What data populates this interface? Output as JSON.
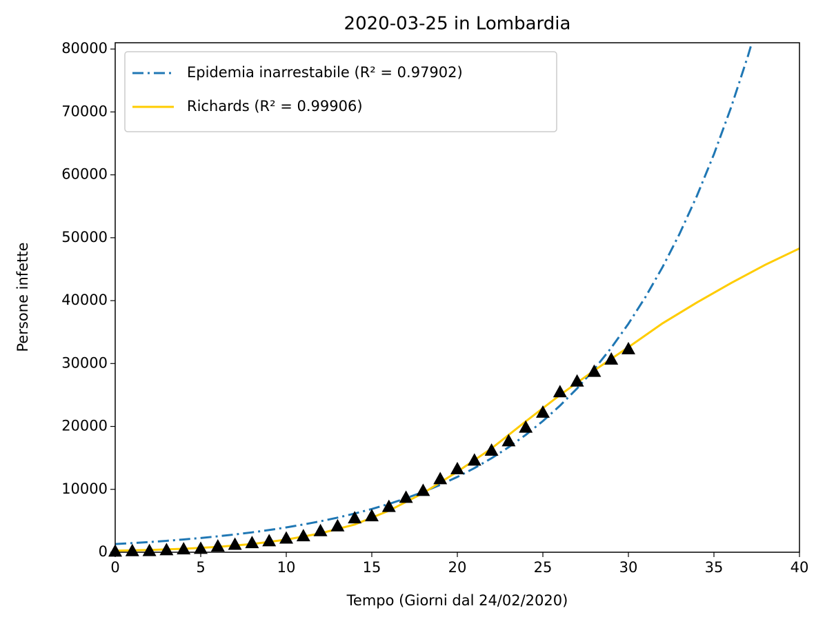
{
  "chart_data": {
    "type": "line",
    "title": "2020-03-25 in Lombardia",
    "x_label": "Tempo (Giorni dal 24/02/2020)",
    "y_label": "Persone infette",
    "xlim": [
      0,
      40
    ],
    "xticks": [
      0,
      5,
      10,
      15,
      20,
      25,
      30,
      35,
      40
    ],
    "ylim": [
      0,
      81000
    ],
    "yticks": [
      0,
      10000,
      20000,
      30000,
      40000,
      50000,
      60000,
      70000,
      80000
    ],
    "grid": false,
    "legend": "upper left",
    "series": [
      {
        "name": "Epidemia inarrestabile (R² = 0.97902)",
        "color": "#1f77b4",
        "linestyle": "dashdot",
        "x": [
          0,
          1,
          2,
          3,
          4,
          5,
          6,
          7,
          8,
          9,
          10,
          11,
          12,
          13,
          14,
          15,
          16,
          17,
          18,
          19,
          20,
          21,
          22,
          23,
          24,
          25,
          26,
          27,
          28,
          29,
          30,
          31,
          32,
          33,
          34,
          35,
          36,
          37,
          38
        ],
        "values": [
          1300,
          1453,
          1623,
          1814,
          2027,
          2264,
          2530,
          2827,
          3159,
          3530,
          3945,
          4408,
          4925,
          5504,
          6150,
          6872,
          7678,
          8580,
          9587,
          10713,
          11970,
          13375,
          14946,
          16700,
          18661,
          20852,
          23300,
          26035,
          29091,
          32507,
          36323,
          40587,
          45353,
          50678,
          56627,
          63275,
          70703,
          79004,
          88279
        ]
      },
      {
        "name": "Richards (R² = 0.99906)",
        "color": "#ffcc00",
        "linestyle": "solid",
        "x": [
          0,
          2,
          4,
          6,
          8,
          10,
          12,
          14,
          16,
          18,
          20,
          22,
          24,
          26,
          28,
          30,
          32,
          34,
          36,
          38,
          40
        ],
        "values": [
          250,
          350,
          550,
          850,
          1300,
          2000,
          3000,
          4400,
          6600,
          9400,
          12800,
          16500,
          20800,
          25000,
          28900,
          32600,
          36400,
          39700,
          42800,
          45700,
          48300
        ]
      },
      {
        "color": "#000000",
        "linestyle": "none",
        "marker": "triangle",
        "x": [
          0,
          1,
          2,
          3,
          4,
          5,
          6,
          7,
          8,
          9,
          10,
          11,
          12,
          13,
          14,
          15,
          16,
          17,
          18,
          19,
          20,
          21,
          22,
          23,
          24,
          25,
          26,
          27,
          28,
          29,
          30
        ],
        "values": [
          172,
          240,
          258,
          403,
          531,
          615,
          984,
          1254,
          1520,
          1820,
          2251,
          2612,
          3420,
          4189,
          5469,
          5791,
          7280,
          8725,
          9820,
          11685,
          13272,
          14649,
          16220,
          17713,
          19884,
          22264,
          25515,
          27206,
          28761,
          30703,
          32346
        ]
      }
    ]
  }
}
